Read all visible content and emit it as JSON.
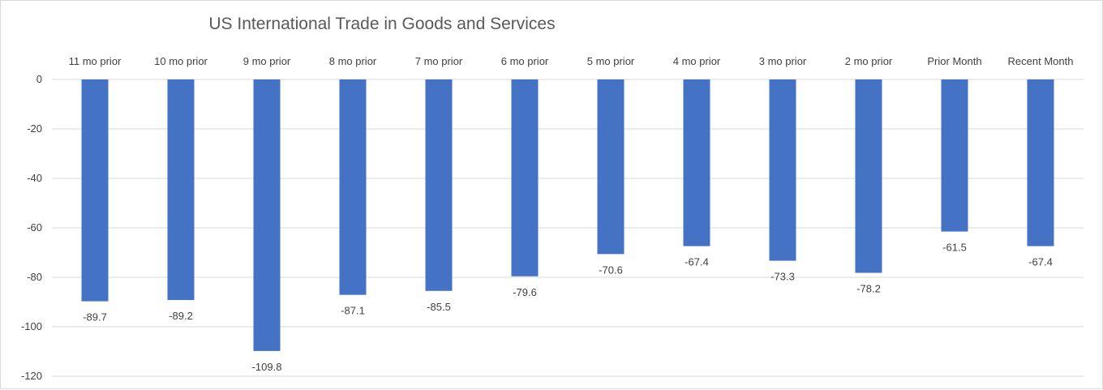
{
  "chart_data": {
    "type": "bar",
    "title": "US International Trade in Goods and Services",
    "xlabel": "",
    "ylabel": "",
    "categories": [
      "11 mo prior",
      "10 mo prior",
      "9 mo prior",
      "8 mo prior",
      "7 mo prior",
      "6 mo prior",
      "5 mo prior",
      "4 mo prior",
      "3 mo prior",
      "2 mo prior",
      "Prior Month",
      "Recent Month"
    ],
    "values": [
      -89.7,
      -89.2,
      -109.8,
      -87.1,
      -85.5,
      -79.6,
      -70.6,
      -67.4,
      -73.3,
      -78.2,
      -61.5,
      -67.4
    ],
    "data_labels": [
      "-89.7",
      "-89.2",
      "-109.8",
      "-87.1",
      "-85.5",
      "-79.6",
      "-70.6",
      "-67.4",
      "-73.3",
      "-78.2",
      "-61.5",
      "-67.4"
    ],
    "yticks": [
      0,
      -20,
      -40,
      -60,
      -80,
      -100,
      -120
    ],
    "ylim": [
      -120,
      0
    ],
    "grid": true,
    "category_axis_position": "top",
    "bar_color": "#4472c4"
  }
}
